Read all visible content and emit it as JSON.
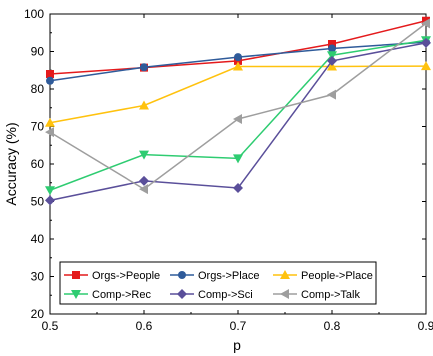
{
  "chart_data": {
    "type": "line",
    "title": "",
    "xlabel": "p",
    "ylabel": "Accuracy (%)",
    "xlim": [
      0.5,
      0.9
    ],
    "ylim": [
      20,
      100
    ],
    "x_ticks": [
      "0.5",
      "0.6",
      "0.7",
      "0.8",
      "0.9"
    ],
    "y_ticks": [
      "20",
      "30",
      "40",
      "50",
      "60",
      "70",
      "80",
      "90",
      "100"
    ],
    "grid": false,
    "legend_position": "bottom-center",
    "x": [
      0.5,
      0.6,
      0.7,
      0.8,
      0.9
    ],
    "series": [
      {
        "name": "Orgs->People",
        "values": [
          84,
          85.7,
          87.5,
          92,
          98.2
        ],
        "color": "#e41a1c",
        "marker": "square"
      },
      {
        "name": "Orgs->Place",
        "values": [
          82.2,
          85.8,
          88.5,
          90.8,
          92.5
        ],
        "color": "#2f5b9a",
        "marker": "circle"
      },
      {
        "name": "People->Place",
        "values": [
          71,
          75.6,
          86,
          86,
          86.1
        ],
        "color": "#ffc20e",
        "marker": "triangle-up"
      },
      {
        "name": "Comp->Rec",
        "values": [
          53,
          62.5,
          61.5,
          89,
          93
        ],
        "color": "#2ecc71",
        "marker": "triangle-down"
      },
      {
        "name": "Comp->Sci",
        "values": [
          50.3,
          55.5,
          53.6,
          87.5,
          92.3
        ],
        "color": "#5a4f9a",
        "marker": "diamond"
      },
      {
        "name": "Comp->Talk",
        "values": [
          68.5,
          53.3,
          72,
          78.5,
          97.5
        ],
        "color": "#9e9e9e",
        "marker": "triangle-left"
      }
    ]
  }
}
